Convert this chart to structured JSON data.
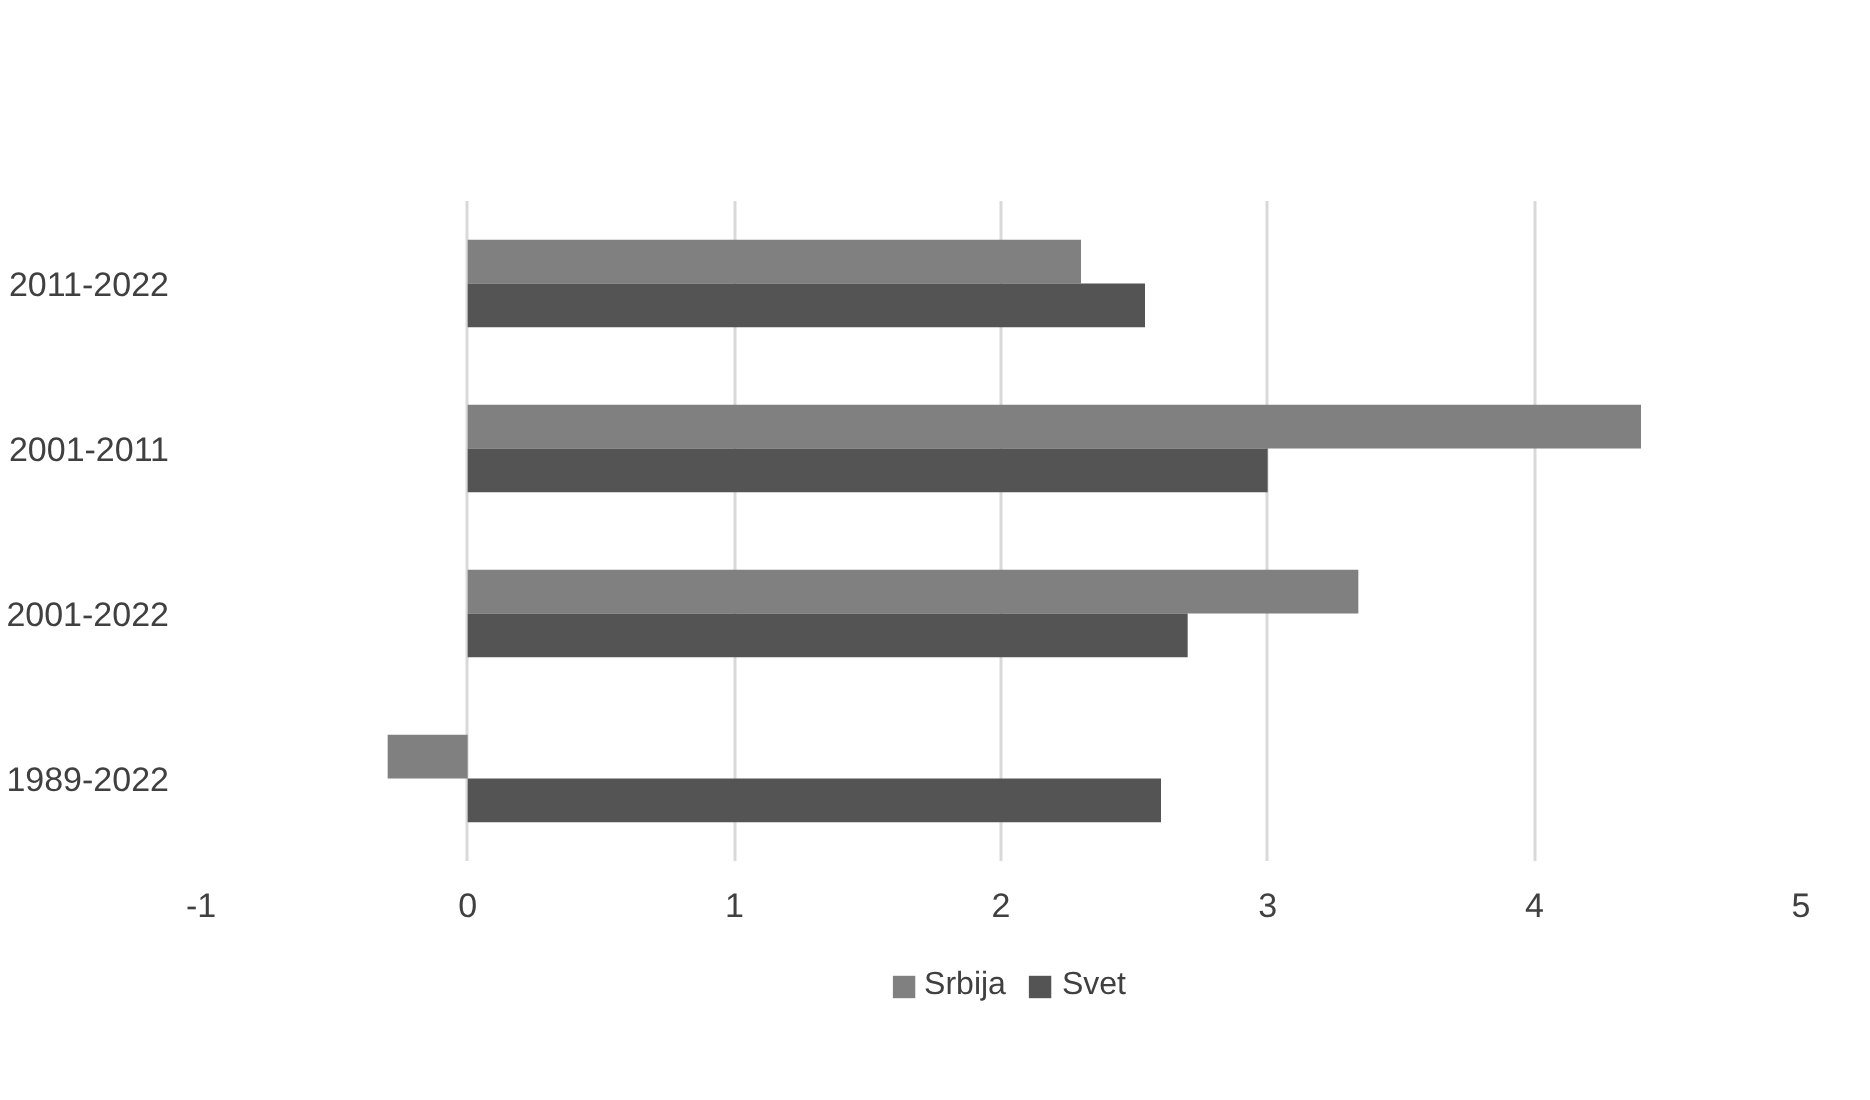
{
  "chart_data": {
    "type": "bar",
    "orientation": "horizontal",
    "categories": [
      "2011-2022",
      "2001-2011",
      "2001-2022",
      "1989-2022"
    ],
    "series": [
      {
        "name": "Srbija",
        "color": "#808080",
        "values": [
          2.3,
          4.4,
          3.34,
          -0.3
        ]
      },
      {
        "name": "Svet",
        "color": "#545454",
        "values": [
          2.54,
          3.0,
          2.7,
          2.6
        ]
      }
    ],
    "xlim": [
      -1,
      5
    ],
    "xticks": [
      -1,
      0,
      1,
      2,
      3,
      4,
      5
    ],
    "grid": "x",
    "legend": "bottom"
  }
}
